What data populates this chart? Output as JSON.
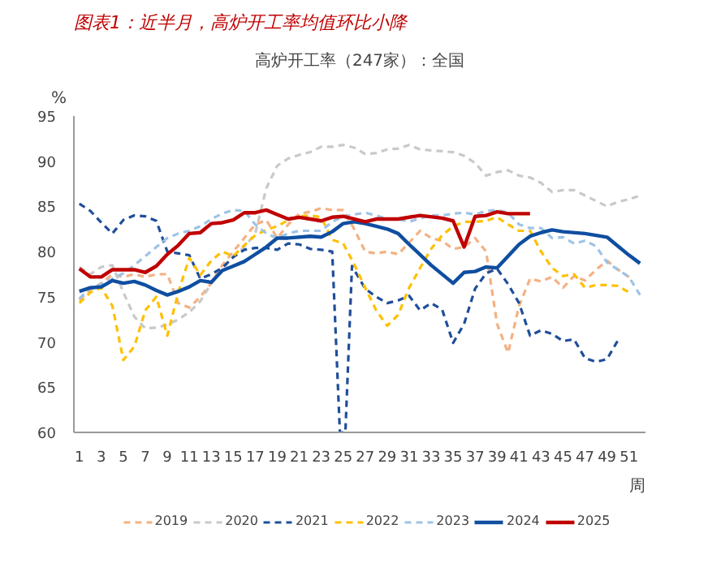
{
  "chart_data": {
    "type": "line",
    "title": "图表1：近半月，高炉开工率均值环比小降",
    "subtitle": "高炉开工率（247家）：全国",
    "ylabel": "%",
    "xlabel": "周",
    "xlim": [
      0.5,
      52.5
    ],
    "xticks": [
      1,
      3,
      5,
      7,
      9,
      11,
      13,
      15,
      17,
      19,
      21,
      23,
      25,
      27,
      29,
      31,
      33,
      35,
      37,
      39,
      41,
      43,
      45,
      47,
      49,
      51
    ],
    "ylim": [
      60,
      95
    ],
    "yticks": [
      60,
      65,
      70,
      75,
      80,
      85,
      90,
      95
    ],
    "grid": false,
    "legend": "bottom",
    "marker": "none",
    "series": [
      {
        "name": "2019",
        "color": "#f4b183",
        "line_style": "dashed",
        "x": [
          1,
          2,
          3,
          4,
          5,
          6,
          7,
          8,
          9,
          10,
          11,
          12,
          13,
          14,
          15,
          16,
          17,
          18,
          19,
          20,
          21,
          22,
          23,
          24,
          25,
          26,
          27,
          28,
          29,
          30,
          31,
          32,
          33,
          34,
          35,
          36,
          37,
          38,
          39,
          40,
          41,
          42,
          43,
          44,
          45,
          46,
          47,
          48,
          49,
          50,
          51
        ],
        "values": [
          74.6,
          75.8,
          76.5,
          77.5,
          77.2,
          77.5,
          77.2,
          77.5,
          77.5,
          74.3,
          73.8,
          75,
          76.5,
          78.5,
          80,
          81.5,
          83,
          83.5,
          81.5,
          83,
          84.2,
          84.4,
          84.8,
          84.6,
          84.6,
          82.5,
          80,
          79.8,
          80,
          79.7,
          81,
          82.3,
          81.5,
          81.2,
          80.3,
          80.5,
          81.5,
          80,
          72,
          68.8,
          74,
          77,
          76.7,
          77.2,
          76,
          77.3,
          76.8,
          78,
          79,
          78,
          77.2
        ]
      },
      {
        "name": "2020",
        "color": "#c9c9c9",
        "line_style": "dashed",
        "x": [
          1,
          2,
          3,
          4,
          5,
          6,
          7,
          8,
          9,
          10,
          11,
          12,
          13,
          14,
          15,
          16,
          17,
          18,
          19,
          20,
          21,
          22,
          23,
          24,
          25,
          26,
          27,
          28,
          29,
          30,
          31,
          32,
          33,
          34,
          35,
          36,
          37,
          38,
          39,
          40,
          41,
          42,
          43,
          44,
          45,
          46,
          47,
          48,
          49,
          50,
          51,
          52
        ],
        "values": [
          78.3,
          77.5,
          78.3,
          78.5,
          75.5,
          72.8,
          71.5,
          71.6,
          71.9,
          72.5,
          73.3,
          74.5,
          76.5,
          78,
          79.5,
          80.5,
          82,
          87,
          89.5,
          90.3,
          90.7,
          91,
          91.6,
          91.6,
          91.8,
          91.5,
          90.8,
          90.9,
          91.3,
          91.4,
          91.8,
          91.3,
          91.2,
          91.1,
          91,
          90.6,
          89.8,
          88.4,
          88.8,
          89,
          88.4,
          88.2,
          87.6,
          86.6,
          86.8,
          86.8,
          86.2,
          85.6,
          85,
          85.5,
          85.8,
          86.2
        ]
      },
      {
        "name": "2021",
        "color": "#1f4e9a",
        "line_style": "dashed",
        "x": [
          1,
          2,
          3,
          4,
          5,
          6,
          7,
          8,
          9,
          10,
          11,
          12,
          13,
          14,
          15,
          16,
          17,
          18,
          19,
          20,
          21,
          22,
          23,
          24,
          24.7,
          25.2,
          25.8,
          27,
          28,
          29,
          30,
          31,
          32,
          33,
          34,
          35,
          36,
          37,
          38,
          39,
          40,
          41,
          42,
          43,
          44,
          45,
          46,
          47,
          48,
          49,
          50
        ],
        "values": [
          85.3,
          84.5,
          83.2,
          82,
          83.5,
          84,
          83.9,
          83.4,
          80,
          79.8,
          79.6,
          77,
          77.5,
          78.2,
          79.4,
          80.2,
          80.4,
          80.4,
          80.2,
          80.9,
          80.8,
          80.3,
          80.2,
          80,
          60,
          60,
          78.4,
          75.9,
          75,
          74.3,
          74.6,
          75.1,
          73.5,
          74.3,
          73.6,
          69.9,
          72,
          75.9,
          77.6,
          78.1,
          76.4,
          74.3,
          70.7,
          71.3,
          70.9,
          70.1,
          70.3,
          68.2,
          67.8,
          68.1,
          70.2
        ]
      },
      {
        "name": "2022",
        "color": "#ffc000",
        "line_style": "dashed",
        "x": [
          1,
          2,
          3,
          4,
          5,
          6,
          7,
          8,
          9,
          10,
          11,
          12,
          13,
          14,
          15,
          16,
          17,
          18,
          19,
          20,
          21,
          22,
          23,
          24,
          25,
          26,
          27,
          28,
          29,
          30,
          31,
          32,
          33,
          34,
          35,
          36,
          37,
          38,
          39,
          40,
          41,
          42,
          43,
          44,
          45,
          46,
          47,
          48,
          49,
          50,
          51
        ],
        "values": [
          74.3,
          75.5,
          76,
          74,
          68,
          69.5,
          73.5,
          75,
          70.7,
          75.5,
          79.3,
          77.4,
          79,
          80,
          79.5,
          80.7,
          81.8,
          82.4,
          82.8,
          83.5,
          83.9,
          84,
          83.8,
          81.3,
          80.9,
          78.6,
          76,
          73.5,
          71.8,
          73,
          76,
          78.2,
          80.3,
          81.8,
          82.8,
          83.3,
          83.3,
          83.4,
          83.8,
          83,
          82.3,
          82.3,
          80,
          78.2,
          77.3,
          77.5,
          76,
          76.3,
          76.3,
          76.2,
          75.5
        ]
      },
      {
        "name": "2023",
        "color": "#9dc3e6",
        "line_style": "dashed",
        "x": [
          1,
          2,
          3,
          4,
          5,
          6,
          7,
          8,
          9,
          10,
          11,
          12,
          13,
          14,
          15,
          16,
          17,
          18,
          19,
          20,
          21,
          22,
          23,
          24,
          25,
          26,
          27,
          28,
          29,
          30,
          31,
          32,
          33,
          34,
          35,
          36,
          37,
          38,
          39,
          40,
          41,
          42,
          43,
          44,
          45,
          46,
          47,
          48,
          49,
          50,
          51,
          52
        ],
        "values": [
          74.8,
          76,
          76.4,
          77,
          77.6,
          78.5,
          79.5,
          80.5,
          81.5,
          82,
          82.3,
          82.8,
          83.6,
          84.2,
          84.6,
          84.5,
          83,
          82,
          81.5,
          82,
          82.3,
          82.3,
          82.3,
          83.3,
          83.9,
          84.1,
          84.3,
          84,
          83.6,
          83.6,
          83.3,
          83.7,
          84,
          84,
          84.2,
          84.3,
          84.1,
          84.5,
          84.6,
          84.3,
          83,
          82.6,
          82.6,
          81.5,
          81.6,
          80.9,
          81.2,
          80.6,
          78.8,
          78,
          77.2,
          75.2
        ]
      },
      {
        "name": "2024",
        "color": "#0f4ea0",
        "line_style": "solid",
        "x": [
          1,
          2,
          3,
          4,
          5,
          6,
          7,
          8,
          9,
          10,
          11,
          12,
          13,
          14,
          15,
          16,
          17,
          18,
          19,
          20,
          22,
          23,
          24,
          25,
          26,
          27,
          28,
          29,
          30,
          31,
          33,
          35,
          36,
          37,
          38,
          39,
          40,
          41,
          42,
          43,
          44,
          45,
          47,
          48,
          49,
          51,
          52
        ],
        "values": [
          75.6,
          76,
          76.1,
          76.8,
          76.5,
          76.7,
          76.3,
          75.7,
          75.2,
          75.6,
          76.1,
          76.8,
          76.6,
          77.9,
          78.4,
          78.9,
          79.7,
          80.5,
          81.5,
          81.5,
          81.7,
          81.6,
          82.2,
          83.1,
          83.3,
          83.1,
          82.8,
          82.5,
          82,
          80.8,
          78.5,
          76.5,
          77.7,
          77.8,
          78.3,
          78.2,
          79.5,
          80.8,
          81.7,
          82.1,
          82.4,
          82.2,
          82,
          81.8,
          81.6,
          79.6,
          78.7
        ]
      },
      {
        "name": "2025",
        "color": "#c00000",
        "line_style": "solid",
        "x": [
          1,
          2,
          3,
          4,
          6,
          7,
          8,
          9,
          10,
          11,
          12,
          13,
          14,
          15,
          16,
          17,
          18,
          19,
          20,
          21,
          22,
          23,
          24,
          25,
          27,
          28,
          30,
          32,
          34,
          35,
          36,
          37,
          38,
          39,
          40,
          42
        ],
        "values": [
          78.1,
          77.2,
          77.2,
          78,
          78,
          77.7,
          78.4,
          79.7,
          80.7,
          82,
          82.1,
          83.1,
          83.2,
          83.5,
          84.3,
          84.3,
          84.6,
          84.1,
          83.6,
          83.8,
          83.6,
          83.4,
          83.8,
          83.9,
          83.3,
          83.6,
          83.6,
          84,
          83.7,
          83.4,
          80.5,
          83.9,
          84,
          84.4,
          84.2,
          84.2
        ]
      }
    ]
  }
}
